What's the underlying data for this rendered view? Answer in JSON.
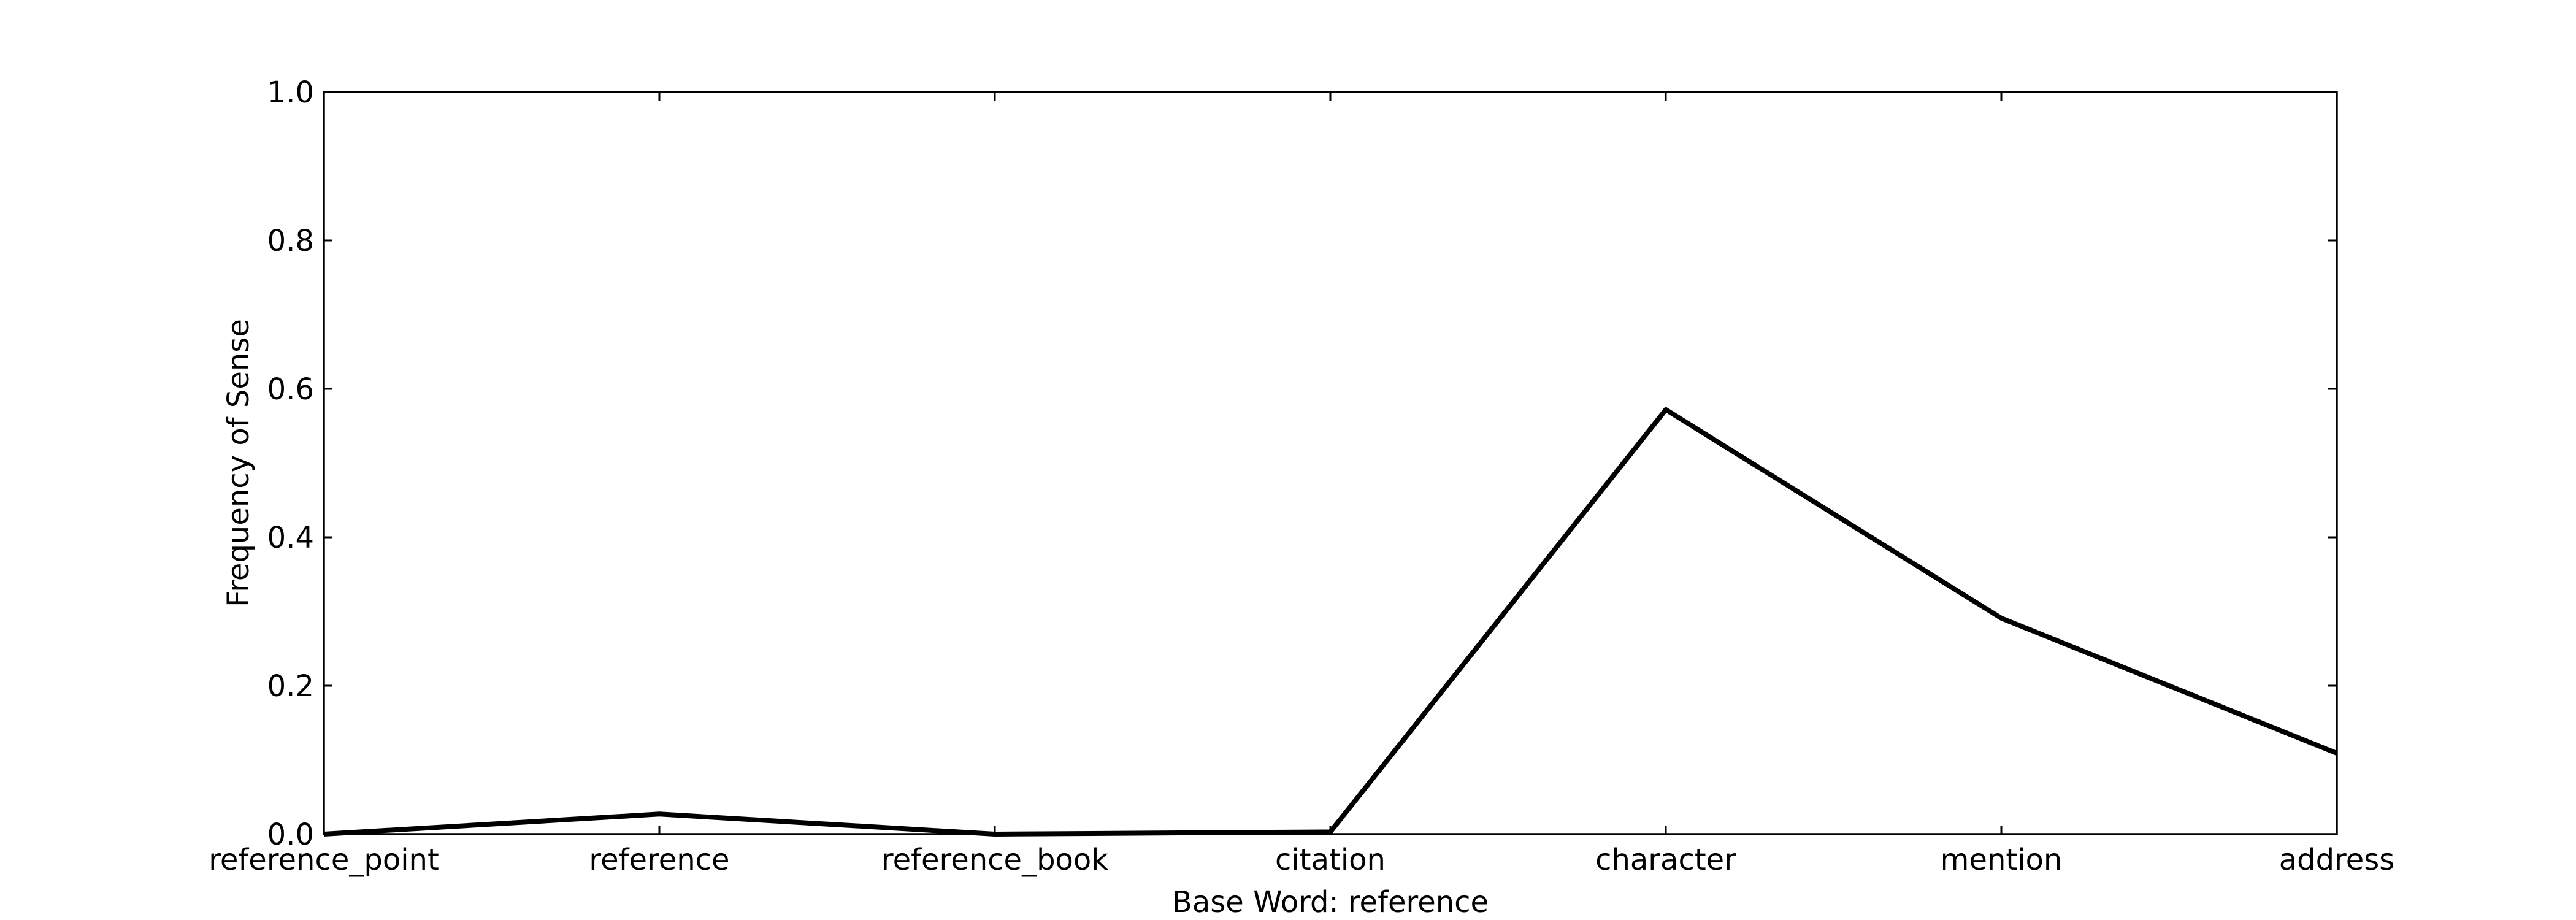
{
  "chart_data": {
    "type": "line",
    "title": "",
    "xlabel": "Base Word: reference",
    "ylabel": "Frequency of Sense",
    "categories": [
      "reference_point",
      "reference",
      "reference_book",
      "citation",
      "character",
      "mention",
      "address"
    ],
    "series": [
      {
        "values": [
          0.0,
          0.027,
          0.0,
          0.003,
          0.572,
          0.291,
          0.109
        ],
        "color": "#000000"
      }
    ],
    "ylim": [
      0.0,
      1.0
    ],
    "yticks": [
      0.0,
      0.2,
      0.4,
      0.6,
      0.8,
      1.0
    ],
    "ytick_labels": [
      "0.0",
      "0.2",
      "0.4",
      "0.6",
      "0.8",
      "1.0"
    ],
    "grid": false,
    "legend": "none"
  }
}
